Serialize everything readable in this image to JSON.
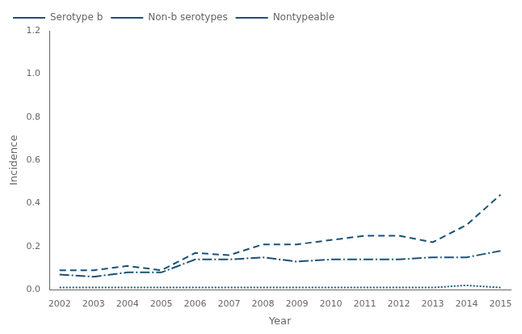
{
  "chart_data": {
    "type": "line",
    "x": [
      2002,
      2003,
      2004,
      2005,
      2006,
      2007,
      2008,
      2009,
      2010,
      2011,
      2012,
      2013,
      2014,
      2015
    ],
    "series": [
      {
        "name": "Serotype b",
        "color": "#1a5276",
        "line_style": "dotted",
        "values": [
          0.01,
          0.01,
          0.01,
          0.01,
          0.01,
          0.01,
          0.01,
          0.01,
          0.01,
          0.01,
          0.01,
          0.01,
          0.02,
          0.01
        ]
      },
      {
        "name": "Non-b serotypes",
        "color": "#1a5276",
        "line_style": "dashdot",
        "values": [
          0.07,
          0.06,
          0.08,
          0.08,
          0.14,
          0.14,
          0.15,
          0.13,
          0.14,
          0.14,
          0.14,
          0.15,
          0.15,
          0.18
        ]
      },
      {
        "name": "Nontypeable",
        "color": "#1a5276",
        "line_style": "dashed",
        "values": [
          0.09,
          0.09,
          0.11,
          0.09,
          0.17,
          0.16,
          0.21,
          0.21,
          0.23,
          0.25,
          0.25,
          0.22,
          0.3,
          0.44
        ]
      }
    ],
    "xlabel": "Year",
    "ylabel": "Incidence",
    "xlim": [
      2001.7,
      2015.3
    ],
    "xticks": [
      2002,
      2003,
      2004,
      2005,
      2006,
      2007,
      2008,
      2009,
      2010,
      2011,
      2012,
      2013,
      2014,
      2015
    ],
    "ylim": [
      0,
      1.2
    ],
    "yticks": [
      {
        "value": 0,
        "label": "0.0"
      },
      0.2,
      0.4,
      0.6,
      0.8,
      {
        "value": 1,
        "label": "1.0"
      },
      1.2
    ],
    "grid": false,
    "legend": "upper left"
  }
}
